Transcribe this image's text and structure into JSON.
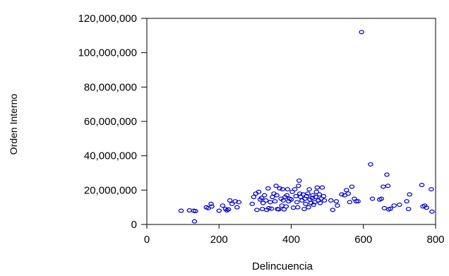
{
  "chart_data": {
    "type": "scatter",
    "title": "",
    "xlabel": "Delincuencia",
    "ylabel": "Orden Interno",
    "xlim": [
      0,
      800
    ],
    "ylim": [
      0,
      120000000
    ],
    "x_ticks": [
      0,
      200,
      400,
      600,
      800
    ],
    "x_tick_labels": [
      "0",
      "200",
      "400",
      "600",
      "800"
    ],
    "y_ticks": [
      0,
      20000000,
      40000000,
      60000000,
      80000000,
      100000000,
      120000000
    ],
    "y_tick_labels": [
      "0",
      "20,000,000",
      "40,000,000",
      "60,000,000",
      "80,000,000",
      "100,000,000",
      "120,000,000"
    ],
    "grid": false,
    "legend": "none",
    "marker": "hollow-circle",
    "marker_color": "#0000cc",
    "series": [
      {
        "points": [
          [
            95,
            8000000
          ],
          [
            118,
            8200000
          ],
          [
            130,
            8000000
          ],
          [
            135,
            7800000
          ],
          [
            132,
            1800000
          ],
          [
            165,
            10000000
          ],
          [
            170,
            9500000
          ],
          [
            178,
            12000000
          ],
          [
            180,
            10500000
          ],
          [
            200,
            8000000
          ],
          [
            210,
            11000000
          ],
          [
            218,
            9000000
          ],
          [
            222,
            8200000
          ],
          [
            226,
            8800000
          ],
          [
            230,
            14000000
          ],
          [
            236,
            12000000
          ],
          [
            245,
            13500000
          ],
          [
            250,
            10000000
          ],
          [
            255,
            13000000
          ],
          [
            292,
            12000000
          ],
          [
            296,
            16000000
          ],
          [
            302,
            18000000
          ],
          [
            305,
            8500000
          ],
          [
            310,
            19000000
          ],
          [
            314,
            14500000
          ],
          [
            318,
            15500000
          ],
          [
            320,
            9000000
          ],
          [
            322,
            12500000
          ],
          [
            326,
            17000000
          ],
          [
            330,
            14000000
          ],
          [
            332,
            8500000
          ],
          [
            336,
            21000000
          ],
          [
            338,
            9500000
          ],
          [
            342,
            13000000
          ],
          [
            345,
            9200000
          ],
          [
            348,
            16000000
          ],
          [
            352,
            18000000
          ],
          [
            355,
            13500000
          ],
          [
            358,
            22500000
          ],
          [
            360,
            17000000
          ],
          [
            362,
            9000000
          ],
          [
            365,
            8800000
          ],
          [
            368,
            21000000
          ],
          [
            372,
            15000000
          ],
          [
            374,
            11000000
          ],
          [
            376,
            20500000
          ],
          [
            378,
            14000000
          ],
          [
            380,
            8800000
          ],
          [
            383,
            16000000
          ],
          [
            386,
            10500000
          ],
          [
            388,
            17000000
          ],
          [
            390,
            20500000
          ],
          [
            393,
            13500000
          ],
          [
            396,
            15000000
          ],
          [
            400,
            14500000
          ],
          [
            403,
            19000000
          ],
          [
            406,
            9800000
          ],
          [
            410,
            20500000
          ],
          [
            413,
            16500000
          ],
          [
            416,
            13000000
          ],
          [
            418,
            10000000
          ],
          [
            420,
            22500000
          ],
          [
            422,
            25500000
          ],
          [
            424,
            18000000
          ],
          [
            426,
            16000000
          ],
          [
            430,
            14000000
          ],
          [
            433,
            17500000
          ],
          [
            436,
            9000000
          ],
          [
            438,
            15000000
          ],
          [
            440,
            12000000
          ],
          [
            443,
            16500000
          ],
          [
            446,
            18000000
          ],
          [
            448,
            10000000
          ],
          [
            450,
            20500000
          ],
          [
            452,
            14500000
          ],
          [
            455,
            12500000
          ],
          [
            458,
            15500000
          ],
          [
            460,
            17000000
          ],
          [
            462,
            11500000
          ],
          [
            465,
            13000000
          ],
          [
            468,
            16000000
          ],
          [
            470,
            19000000
          ],
          [
            472,
            21500000
          ],
          [
            475,
            14000000
          ],
          [
            478,
            17500000
          ],
          [
            480,
            12500000
          ],
          [
            483,
            15000000
          ],
          [
            486,
            21500000
          ],
          [
            490,
            16500000
          ],
          [
            492,
            14000000
          ],
          [
            510,
            14000000
          ],
          [
            515,
            8500000
          ],
          [
            525,
            13500000
          ],
          [
            528,
            11000000
          ],
          [
            540,
            17500000
          ],
          [
            548,
            17000000
          ],
          [
            553,
            20000000
          ],
          [
            558,
            18000000
          ],
          [
            562,
            13000000
          ],
          [
            568,
            22000000
          ],
          [
            575,
            15000000
          ],
          [
            580,
            13500000
          ],
          [
            585,
            13500000
          ],
          [
            595,
            112000000
          ],
          [
            620,
            35000000
          ],
          [
            625,
            15000000
          ],
          [
            645,
            14500000
          ],
          [
            650,
            15000000
          ],
          [
            655,
            22000000
          ],
          [
            658,
            9500000
          ],
          [
            665,
            29000000
          ],
          [
            668,
            22500000
          ],
          [
            670,
            8800000
          ],
          [
            675,
            9200000
          ],
          [
            685,
            11000000
          ],
          [
            700,
            11500000
          ],
          [
            720,
            13500000
          ],
          [
            725,
            9000000
          ],
          [
            728,
            17500000
          ],
          [
            762,
            23000000
          ],
          [
            765,
            10500000
          ],
          [
            770,
            11000000
          ],
          [
            775,
            9800000
          ],
          [
            788,
            20500000
          ],
          [
            790,
            7500000
          ]
        ]
      }
    ]
  }
}
